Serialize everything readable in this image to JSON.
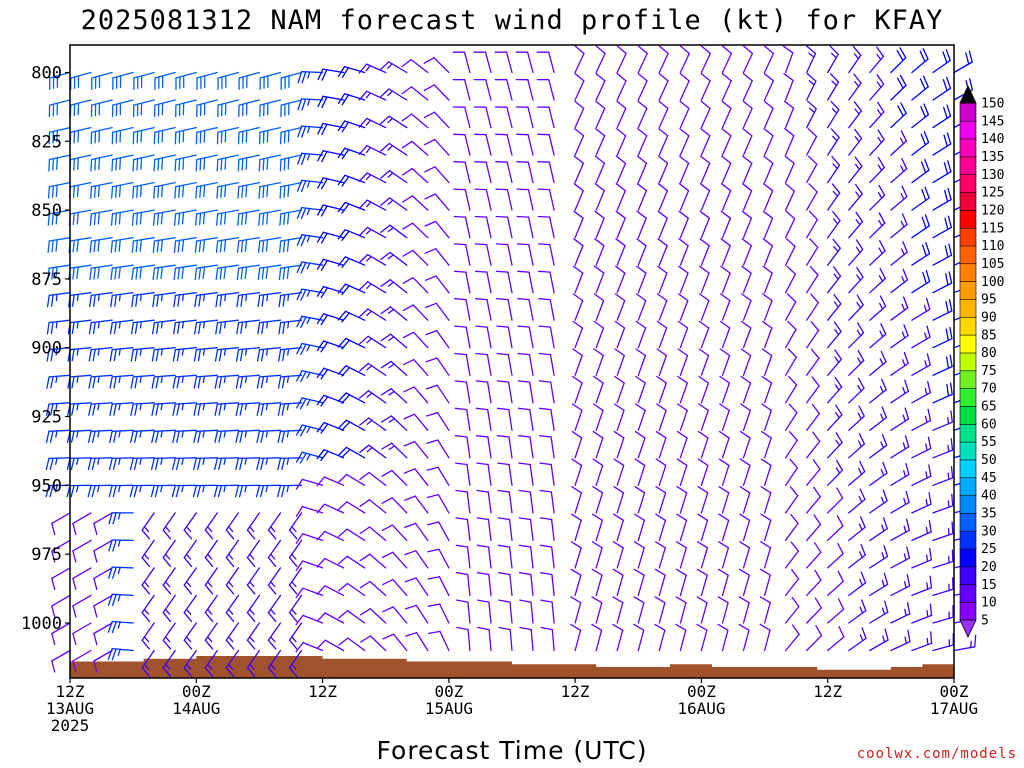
{
  "chart_data": {
    "type": "wind_barb_time_height",
    "title": "2025081312 NAM forecast wind profile (kt) for KFAY",
    "xlabel": "Forecast Time (UTC)",
    "ylabel": "",
    "x_ticks": [
      {
        "hour": 0,
        "line1": "12Z",
        "line2": "13AUG",
        "line3": "2025"
      },
      {
        "hour": 12,
        "line1": "00Z",
        "line2": "14AUG",
        "line3": ""
      },
      {
        "hour": 24,
        "line1": "12Z",
        "line2": "",
        "line3": ""
      },
      {
        "hour": 36,
        "line1": "00Z",
        "line2": "15AUG",
        "line3": ""
      },
      {
        "hour": 48,
        "line1": "12Z",
        "line2": "",
        "line3": ""
      },
      {
        "hour": 60,
        "line1": "00Z",
        "line2": "16AUG",
        "line3": ""
      },
      {
        "hour": 72,
        "line1": "12Z",
        "line2": "",
        "line3": ""
      },
      {
        "hour": 84,
        "line1": "00Z",
        "line2": "17AUG",
        "line3": ""
      }
    ],
    "xlim": [
      0,
      84
    ],
    "y_ticks": [
      800,
      825,
      850,
      875,
      900,
      925,
      950,
      975,
      1000
    ],
    "ylim": [
      790,
      1020
    ],
    "y_reversed": true,
    "barb_times": [
      0,
      2,
      4,
      6,
      8,
      10,
      12,
      14,
      16,
      18,
      20,
      22,
      24,
      26,
      28,
      30,
      32,
      34,
      36,
      38,
      40,
      42,
      44,
      46,
      48,
      50,
      52,
      54,
      56,
      58,
      60,
      62,
      64,
      66,
      68,
      70,
      72,
      74,
      76,
      78,
      80,
      82,
      84
    ],
    "barb_levels": [
      800,
      810,
      820,
      830,
      840,
      850,
      860,
      870,
      880,
      890,
      900,
      910,
      920,
      930,
      940,
      950,
      960,
      970,
      980,
      990,
      1000,
      1010
    ],
    "surface_pressure": [
      {
        "hour": 0,
        "p": 1014
      },
      {
        "hour": 6,
        "p": 1014
      },
      {
        "hour": 7,
        "p": 1013
      },
      {
        "hour": 12,
        "p": 1012
      },
      {
        "hour": 23,
        "p": 1012
      },
      {
        "hour": 24,
        "p": 1013
      },
      {
        "hour": 31,
        "p": 1013
      },
      {
        "hour": 32,
        "p": 1014
      },
      {
        "hour": 41,
        "p": 1014
      },
      {
        "hour": 42,
        "p": 1015
      },
      {
        "hour": 48,
        "p": 1015
      },
      {
        "hour": 50,
        "p": 1016
      },
      {
        "hour": 56,
        "p": 1016
      },
      {
        "hour": 57,
        "p": 1015
      },
      {
        "hour": 59,
        "p": 1015
      },
      {
        "hour": 61,
        "p": 1016
      },
      {
        "hour": 70,
        "p": 1016
      },
      {
        "hour": 71,
        "p": 1017
      },
      {
        "hour": 77,
        "p": 1017
      },
      {
        "hour": 78,
        "p": 1016
      },
      {
        "hour": 80,
        "p": 1016
      },
      {
        "hour": 81,
        "p": 1015
      },
      {
        "hour": 84,
        "p": 1015
      }
    ],
    "ground_color": "#a0522d",
    "colorbar": {
      "ticks": [
        5,
        10,
        15,
        20,
        25,
        30,
        35,
        40,
        45,
        50,
        55,
        60,
        65,
        70,
        75,
        80,
        85,
        90,
        95,
        100,
        105,
        110,
        115,
        120,
        125,
        130,
        135,
        140,
        145,
        150
      ],
      "colors": [
        "#8800ff",
        "#6400ff",
        "#4000ff",
        "#0000ff",
        "#0030ff",
        "#0060ff",
        "#0088ff",
        "#00aaff",
        "#00d0ff",
        "#00e0c0",
        "#00e08a",
        "#00dd44",
        "#30ee30",
        "#70f020",
        "#c0ff00",
        "#ffff00",
        "#ffd800",
        "#ffb400",
        "#ff9a00",
        "#ff8000",
        "#ff6400",
        "#ff4000",
        "#ff0000",
        "#ee0038",
        "#ff0066",
        "#ff0090",
        "#ff00bb",
        "#ee00ee",
        "#cc00cc"
      ]
    }
  },
  "credit": "coolwx.com/models"
}
